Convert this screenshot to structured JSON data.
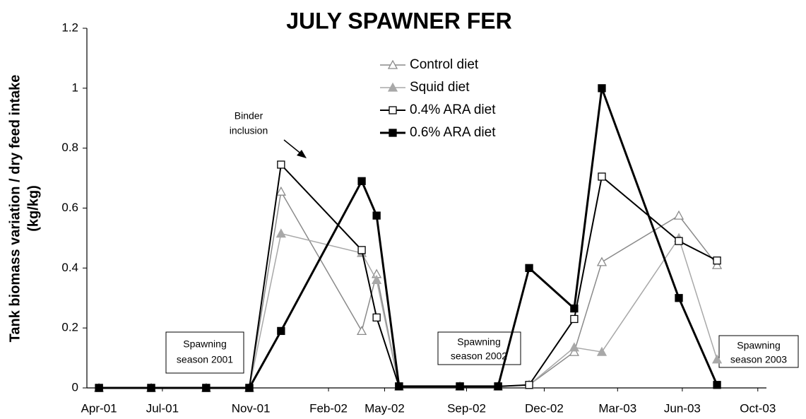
{
  "chart_data": {
    "type": "line",
    "title": "JULY SPAWNER FER",
    "ylabel": [
      "Tank biomass variation / dry feed intake",
      "(kg/kg)"
    ],
    "x": [
      0.56,
      2.98,
      5.53,
      7.53,
      9.0,
      12.74,
      13.43,
      14.47,
      17.29,
      19.06,
      20.5,
      22.59,
      23.87,
      27.44,
      29.21
    ],
    "xlim": [
      0,
      31.5
    ],
    "xticks": [
      {
        "value": 0.56,
        "label": "Apr-01"
      },
      {
        "value": 3.5,
        "label": "Jul-01"
      },
      {
        "value": 7.6,
        "label": "Nov-01"
      },
      {
        "value": 11.2,
        "label": "Feb-02"
      },
      {
        "value": 13.8,
        "label": "May-02"
      },
      {
        "value": 17.6,
        "label": "Sep-02"
      },
      {
        "value": 21.2,
        "label": "Dec-02"
      },
      {
        "value": 24.6,
        "label": "Mar-03"
      },
      {
        "value": 27.6,
        "label": "Jun-03"
      },
      {
        "value": 31.1,
        "label": "Oct-03"
      }
    ],
    "ylim": [
      0,
      1.2
    ],
    "yticks": [
      0,
      0.2,
      0.4,
      0.6,
      0.8,
      1,
      1.2
    ],
    "grid": false,
    "series": [
      {
        "name": "Control diet",
        "color": "#8a8a8a",
        "marker": "triangle-open",
        "line_width": 1.5,
        "values": [
          0,
          0,
          0,
          0,
          0.655,
          0.19,
          0.38,
          0.005,
          0.005,
          0.005,
          0.01,
          0.12,
          0.42,
          0.575,
          0.41
        ]
      },
      {
        "name": "Squid diet",
        "color": "#a8a8a8",
        "marker": "triangle-filled",
        "line_width": 1.5,
        "values": [
          0,
          0,
          0,
          0,
          0.515,
          0.45,
          0.36,
          0.005,
          0.005,
          0.005,
          0.01,
          0.135,
          0.12,
          0.5,
          0.095
        ]
      },
      {
        "name": "0.4% ARA diet",
        "color": "#000000",
        "marker": "square-open",
        "line_width": 2,
        "values": [
          0,
          0,
          0,
          0,
          0.745,
          0.46,
          0.235,
          0.005,
          0.005,
          0.005,
          0.01,
          0.23,
          0.705,
          0.49,
          0.425
        ]
      },
      {
        "name": "0.6% ARA diet",
        "color": "#000000",
        "marker": "square-filled",
        "line_width": 3,
        "values": [
          0,
          0,
          0,
          0,
          0.19,
          0.69,
          0.575,
          0.005,
          0.005,
          0.005,
          0.4,
          0.265,
          1.0,
          0.3,
          0.01
        ]
      }
    ],
    "annotations": {
      "binder": [
        "Binder",
        "inclusion"
      ],
      "season_2001": [
        "Spawning",
        "season 2001"
      ],
      "season_2002": [
        "Spawning",
        "season 2002"
      ],
      "season_2003": [
        "Spawning",
        "season 2003"
      ]
    }
  }
}
